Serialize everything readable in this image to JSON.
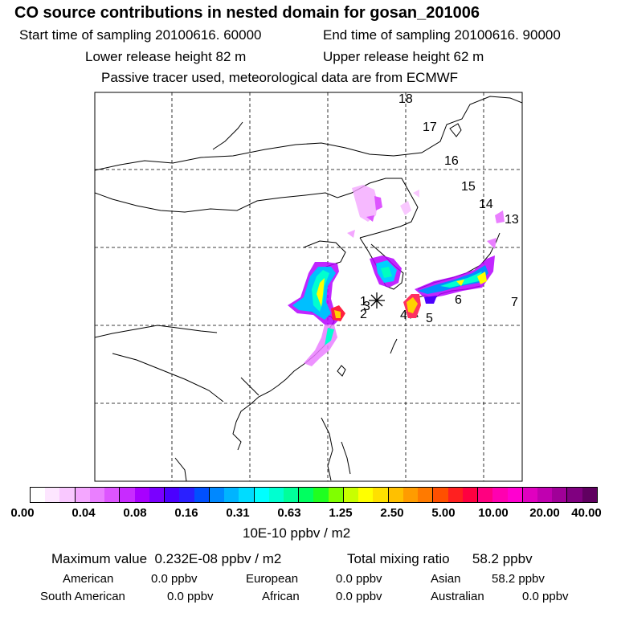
{
  "header": {
    "title": "CO  source contributions in nested domain for gosan_201006",
    "start_time": "Start time of sampling 20100616. 60000",
    "end_time": "End time of sampling 20100616. 90000",
    "lower_height": "Lower release height   82 m",
    "upper_height": "Upper release height   62 m",
    "tracer_note": "Passive tracer used, meteorological data are from ECMWF"
  },
  "map": {
    "trajectory_labels": [
      "1",
      "2",
      "3",
      "4",
      "5",
      "6",
      "7",
      "13",
      "14",
      "15",
      "16",
      "17",
      "18"
    ]
  },
  "colorbar": {
    "ticks": [
      "0.00",
      "0.04",
      "0.08",
      "0.16",
      "0.31",
      "0.63",
      "1.25",
      "2.50",
      "5.00",
      "10.00",
      "20.00",
      "40.00"
    ],
    "colors": [
      "#ffffff",
      "#fde6ff",
      "#f9c8ff",
      "#f4a7ff",
      "#ea7fff",
      "#dd55ff",
      "#c82bff",
      "#a800ff",
      "#7a00ff",
      "#4b00ff",
      "#2a20ff",
      "#0050ff",
      "#0088ff",
      "#00b4ff",
      "#00dcff",
      "#00ffff",
      "#00ffd0",
      "#00ff9a",
      "#00ff60",
      "#20ff20",
      "#80ff00",
      "#c8ff00",
      "#ffff00",
      "#ffe000",
      "#ffc000",
      "#ff9c00",
      "#ff7a00",
      "#ff5000",
      "#ff2020",
      "#ff0040",
      "#ff0080",
      "#ff00b0",
      "#ff00d0",
      "#e000c0",
      "#c000b0",
      "#a00098",
      "#800080",
      "#600060"
    ],
    "units": "10E-10 ppbv / m2"
  },
  "summary": {
    "max_label": "Maximum value",
    "max_value": "0.232E-08 ppbv / m2",
    "total_label": "Total mixing ratio",
    "total_value": "58.2 ppbv",
    "regions": [
      {
        "name": "American",
        "value": "0.0 ppbv"
      },
      {
        "name": "European",
        "value": "0.0 ppbv"
      },
      {
        "name": "Asian",
        "value": "58.2 ppbv"
      },
      {
        "name": "South American",
        "value": "0.0 ppbv"
      },
      {
        "name": "African",
        "value": "0.0 ppbv"
      },
      {
        "name": "Australian",
        "value": "0.0 ppbv"
      }
    ]
  }
}
